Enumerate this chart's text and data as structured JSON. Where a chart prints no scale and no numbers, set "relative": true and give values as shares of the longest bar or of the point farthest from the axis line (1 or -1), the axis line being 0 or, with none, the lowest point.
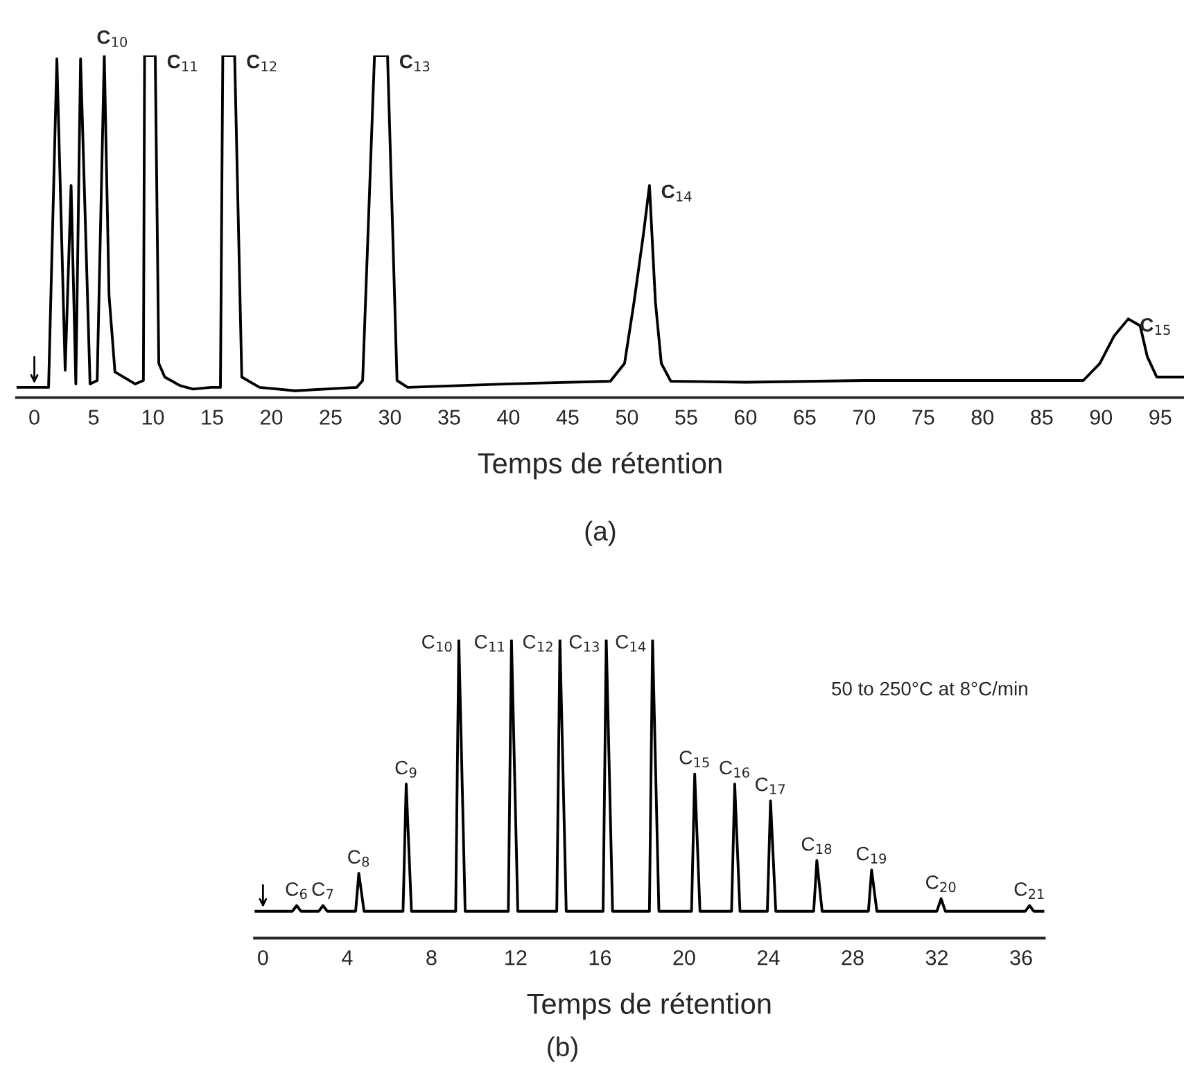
{
  "chart_data": [
    {
      "type": "line",
      "relative": true,
      "title": "(a)",
      "xlabel": "Temps de rétention",
      "xlim": [
        -1.5,
        97
      ],
      "xticks": [
        0,
        5,
        10,
        15,
        20,
        25,
        30,
        35,
        40,
        45,
        50,
        55,
        60,
        65,
        70,
        75,
        80,
        85,
        90,
        95
      ],
      "series": [
        {
          "color": "#000000",
          "x": [
            -1.5,
            1.2,
            1.9,
            2.6,
            3.1,
            3.5,
            3.9,
            4.7,
            5.3,
            5.9,
            6.3,
            6.8,
            8.5,
            9.2,
            9.3,
            10.2,
            10.5,
            11.0,
            12.3,
            13.4,
            14.9,
            15.7,
            15.9,
            16.9,
            17.5,
            19.0,
            22.0,
            27.2,
            27.7,
            28.7,
            29.8,
            30.6,
            31.5,
            40,
            48.6,
            49.8,
            50.6,
            51.4,
            51.9,
            52.4,
            52.9,
            53.7,
            60,
            70,
            80,
            88.5,
            89.9,
            91.1,
            92.3,
            93.3,
            93.9,
            94.7,
            97
          ],
          "values": [
            0.03,
            0.03,
            0.99,
            0.08,
            0.62,
            0.04,
            0.99,
            0.04,
            0.05,
            1.0,
            0.3,
            0.075,
            0.04,
            0.05,
            1.0,
            1.0,
            0.1,
            0.06,
            0.035,
            0.025,
            0.03,
            0.03,
            1.0,
            1.0,
            0.06,
            0.03,
            0.02,
            0.03,
            0.05,
            1.0,
            1.0,
            0.05,
            0.03,
            0.04,
            0.048,
            0.1,
            0.28,
            0.48,
            0.62,
            0.28,
            0.1,
            0.048,
            0.045,
            0.05,
            0.05,
            0.05,
            0.1,
            0.18,
            0.23,
            0.21,
            0.12,
            0.06,
            0.06
          ]
        }
      ],
      "annotations": [
        {
          "text": "C$_{10}$",
          "x": 5.9,
          "y": 1.0
        },
        {
          "text": "C$_{11}$",
          "x": 10.2,
          "y": 1.0
        },
        {
          "text": "C$_{12}$",
          "x": 16.9,
          "y": 1.0
        },
        {
          "text": "C$_{13}$",
          "x": 29.8,
          "y": 1.0
        },
        {
          "text": "C$_{14}$",
          "x": 51.9,
          "y": 0.62
        },
        {
          "text": "C$_{15}$",
          "x": 92.3,
          "y": 0.23
        }
      ]
    },
    {
      "type": "line",
      "relative": true,
      "title": "(b)",
      "xlabel": "Temps de rétention",
      "xlim": [
        -0.4,
        37.1
      ],
      "xticks": [
        0,
        4,
        8,
        12,
        16,
        20,
        24,
        28,
        32,
        36
      ],
      "series": [
        {
          "color": "#000000",
          "x": [
            -0.4,
            1.4,
            1.6,
            1.8,
            2.65,
            2.85,
            3.05,
            4.4,
            4.55,
            4.8,
            6.65,
            6.8,
            7.05,
            9.15,
            9.3,
            9.6,
            11.65,
            11.8,
            12.1,
            13.95,
            14.1,
            14.4,
            16.15,
            16.3,
            16.6,
            18.35,
            18.5,
            18.8,
            20.35,
            20.5,
            20.75,
            22.25,
            22.4,
            22.65,
            23.95,
            24.1,
            24.35,
            26.15,
            26.3,
            26.55,
            28.75,
            28.9,
            29.15,
            32.0,
            32.2,
            32.4,
            36.2,
            36.4,
            36.6,
            37.1
          ],
          "values": [
            0.09,
            0.09,
            0.109,
            0.09,
            0.09,
            0.109,
            0.09,
            0.09,
            0.217,
            0.09,
            0.09,
            0.516,
            0.09,
            0.09,
            1.0,
            0.09,
            0.09,
            1.0,
            0.09,
            0.09,
            1.0,
            0.09,
            0.09,
            1.0,
            0.09,
            0.09,
            1.0,
            0.09,
            0.09,
            0.55,
            0.09,
            0.09,
            0.516,
            0.09,
            0.09,
            0.46,
            0.09,
            0.09,
            0.26,
            0.09,
            0.09,
            0.228,
            0.09,
            0.09,
            0.132,
            0.09,
            0.09,
            0.109,
            0.09,
            0.09
          ]
        }
      ],
      "annotations": [
        "50 to 250°C at 8°C/min",
        {
          "text": "C$_{6}$",
          "x": 1.6,
          "y": 0.109
        },
        {
          "text": "C$_{7}$",
          "x": 2.85,
          "y": 0.109
        },
        {
          "text": "C$_{8}$",
          "x": 4.55,
          "y": 0.217
        },
        {
          "text": "C$_{9}$",
          "x": 6.8,
          "y": 0.516
        },
        {
          "text": "C$_{10}$",
          "x": 9.3,
          "y": 1.0
        },
        {
          "text": "C$_{11}$",
          "x": 11.8,
          "y": 1.0
        },
        {
          "text": "C$_{12}$",
          "x": 14.1,
          "y": 1.0
        },
        {
          "text": "C$_{13}$",
          "x": 16.3,
          "y": 1.0
        },
        {
          "text": "C$_{14}$",
          "x": 18.5,
          "y": 1.0
        },
        {
          "text": "C$_{15}$",
          "x": 20.5,
          "y": 0.55
        },
        {
          "text": "C$_{16}$",
          "x": 22.4,
          "y": 0.516
        },
        {
          "text": "C$_{17}$",
          "x": 24.1,
          "y": 0.46
        },
        {
          "text": "C$_{18}$",
          "x": 26.3,
          "y": 0.26
        },
        {
          "text": "C$_{19}$",
          "x": 28.9,
          "y": 0.228
        },
        {
          "text": "C$_{20}$",
          "x": 32.2,
          "y": 0.132
        },
        {
          "text": "C$_{21}$",
          "x": 36.4,
          "y": 0.109
        }
      ]
    }
  ]
}
